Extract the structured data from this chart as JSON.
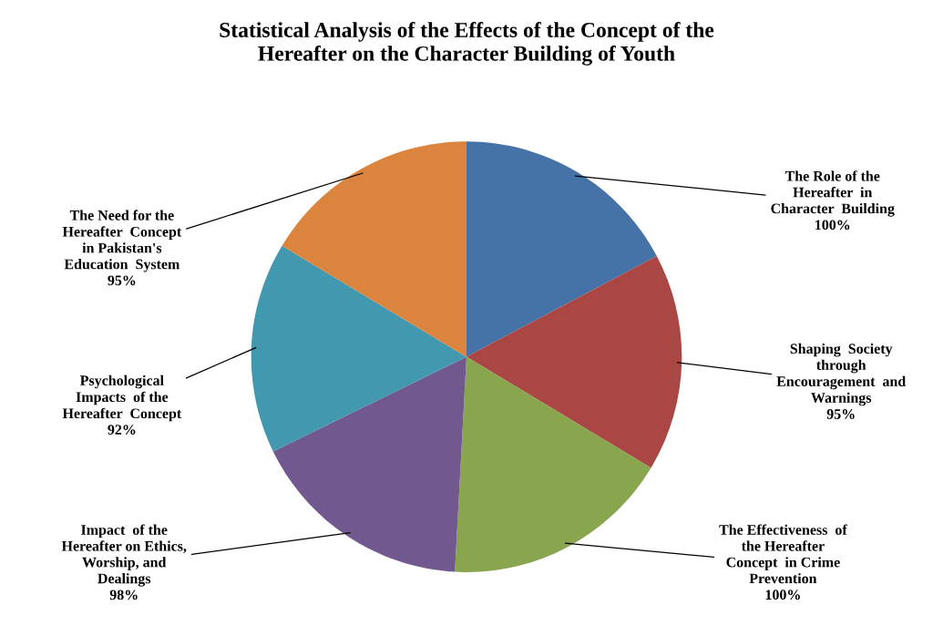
{
  "chart_data": {
    "type": "pie",
    "title": "Statistical Analysis of the Effects of the Concept of the\nHereafter on the Character Building of Youth",
    "categories": [
      "The Role of the\nHereafter  in\nCharacter  Building",
      "Shaping  Society\nthrough\nEncouragement  and\nWarnings",
      "The Effectiveness  of\nthe Hereafter\nConcept  in Crime\nPrevention",
      "Impact  of the\nHereafter on Ethics,\nWorship, and\nDealings",
      "Psychological\nImpacts  of the\nHereafter  Concept",
      "The Need for the\nHereafter  Concept\nin Pakistan's\nEducation  System"
    ],
    "values": [
      100,
      95,
      100,
      98,
      92,
      95
    ],
    "value_labels": [
      "100%",
      "95%",
      "100%",
      "98%",
      "92%",
      "95%"
    ],
    "colors": [
      "#4572a7",
      "#aa4643",
      "#89a54e",
      "#71588f",
      "#4198af",
      "#db843d"
    ],
    "legend": false
  }
}
